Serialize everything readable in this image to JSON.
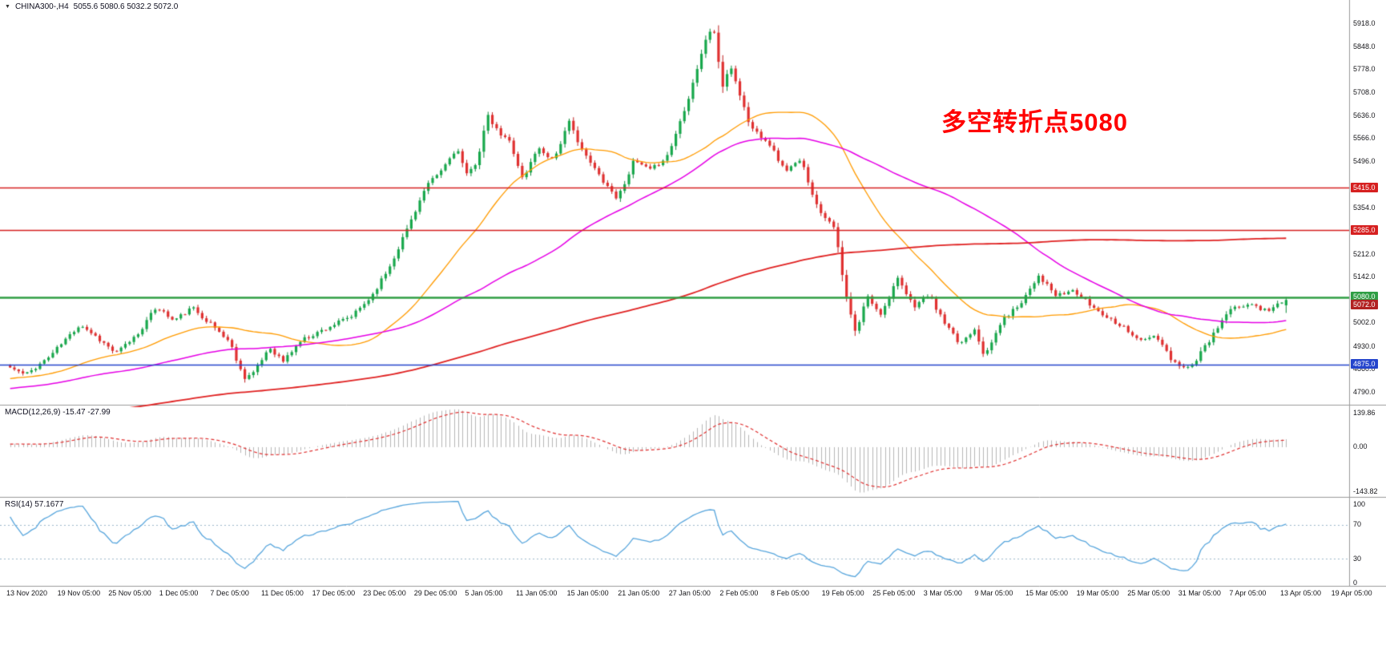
{
  "header": {
    "symbol": "CHINA300-,H4",
    "ohlc": "5055.6 5080.6 5032.2 5072.0"
  },
  "icons": {
    "collapse": "▼"
  },
  "annotation": {
    "text": "多空转折点5080",
    "color": "#ff0000"
  },
  "colors": {
    "background": "#ffffff",
    "panel_border": "#9a9a9a"
  },
  "x_axis": {
    "labels": [
      "13 Nov 2020",
      "19 Nov 05:00",
      "25 Nov 05:00",
      "1 Dec 05:00",
      "7 Dec 05:00",
      "11 Dec 05:00",
      "17 Dec 05:00",
      "23 Dec 05:00",
      "29 Dec 05:00",
      "5 Jan 05:00",
      "11 Jan 05:00",
      "15 Jan 05:00",
      "21 Jan 05:00",
      "27 Jan 05:00",
      "2 Feb 05:00",
      "8 Feb 05:00",
      "19 Feb 05:00",
      "25 Feb 05:00",
      "3 Mar 05:00",
      "9 Mar 05:00",
      "15 Mar 05:00",
      "19 Mar 05:00",
      "25 Mar 05:00",
      "31 Mar 05:00",
      "7 Apr 05:00",
      "13 Apr 05:00",
      "19 Apr 05:00"
    ]
  },
  "chart_data": [
    {
      "type": "candlestick",
      "title": "CHINA300-,H4",
      "timeframe": "H4",
      "last_bar": {
        "open": 5055.6,
        "high": 5080.6,
        "low": 5032.2,
        "close": 5072.0
      },
      "ylim": [
        4756,
        5966
      ],
      "y_ticks": [
        5918,
        5848,
        5778,
        5708,
        5636,
        5566,
        5496,
        5354,
        5212,
        5142,
        5002,
        4930,
        4860,
        4790
      ],
      "hlines": [
        {
          "value": 5415.0,
          "label": "5415.0",
          "color": "#d62020",
          "width": 1.3
        },
        {
          "value": 5285.0,
          "label": "5285.0",
          "color": "#d62020",
          "width": 1.3
        },
        {
          "value": 5080.0,
          "label": "5080.0",
          "color": "#2f9e44",
          "width": 2.6
        },
        {
          "value": 4875.0,
          "label": "4875.0",
          "color": "#2545cc",
          "width": 1.6
        }
      ],
      "current_price": {
        "value": 5072.0,
        "label": "5072.0",
        "color": "#b22222"
      },
      "colors": {
        "up": "#18a84c",
        "up_border": "#0e8c3c",
        "down": "#e03030",
        "down_border": "#bf1f1f"
      },
      "moving_averages": [
        {
          "period": 32,
          "color": "#ff9b00",
          "width": 1.3
        },
        {
          "period": 76,
          "color": "#e600e6",
          "width": 1.5
        },
        {
          "period": 220,
          "color": "#e02222",
          "width": 1.8
        }
      ],
      "bars": 300,
      "warmup_bars": 240,
      "warmup_anchors": [
        [
          0,
          4520
        ],
        [
          0.4,
          4640
        ],
        [
          0.75,
          4770
        ],
        [
          1,
          4850
        ]
      ],
      "close_anchors": [
        [
          0.0,
          4865
        ],
        [
          0.012,
          4842
        ],
        [
          0.03,
          4896
        ],
        [
          0.055,
          4998
        ],
        [
          0.068,
          4958
        ],
        [
          0.083,
          4908
        ],
        [
          0.1,
          4968
        ],
        [
          0.115,
          5052
        ],
        [
          0.128,
          5008
        ],
        [
          0.143,
          5048
        ],
        [
          0.158,
          4996
        ],
        [
          0.172,
          4944
        ],
        [
          0.183,
          4834
        ],
        [
          0.192,
          4852
        ],
        [
          0.203,
          4928
        ],
        [
          0.214,
          4884
        ],
        [
          0.228,
          4948
        ],
        [
          0.248,
          4986
        ],
        [
          0.268,
          5022
        ],
        [
          0.283,
          5082
        ],
        [
          0.298,
          5178
        ],
        [
          0.312,
          5298
        ],
        [
          0.326,
          5418
        ],
        [
          0.338,
          5468
        ],
        [
          0.35,
          5538
        ],
        [
          0.358,
          5452
        ],
        [
          0.366,
          5498
        ],
        [
          0.374,
          5636
        ],
        [
          0.383,
          5582
        ],
        [
          0.392,
          5556
        ],
        [
          0.402,
          5438
        ],
        [
          0.413,
          5538
        ],
        [
          0.426,
          5502
        ],
        [
          0.438,
          5616
        ],
        [
          0.451,
          5512
        ],
        [
          0.464,
          5442
        ],
        [
          0.476,
          5382
        ],
        [
          0.489,
          5498
        ],
        [
          0.502,
          5468
        ],
        [
          0.516,
          5518
        ],
        [
          0.532,
          5696
        ],
        [
          0.544,
          5856
        ],
        [
          0.551,
          5916
        ],
        [
          0.558,
          5722
        ],
        [
          0.565,
          5786
        ],
        [
          0.58,
          5602
        ],
        [
          0.594,
          5558
        ],
        [
          0.607,
          5468
        ],
        [
          0.62,
          5498
        ],
        [
          0.633,
          5352
        ],
        [
          0.646,
          5298
        ],
        [
          0.654,
          5102
        ],
        [
          0.663,
          4962
        ],
        [
          0.671,
          5086
        ],
        [
          0.683,
          5028
        ],
        [
          0.695,
          5138
        ],
        [
          0.708,
          5052
        ],
        [
          0.72,
          5088
        ],
        [
          0.732,
          5002
        ],
        [
          0.744,
          4936
        ],
        [
          0.756,
          4986
        ],
        [
          0.764,
          4896
        ],
        [
          0.777,
          5008
        ],
        [
          0.791,
          5058
        ],
        [
          0.806,
          5148
        ],
        [
          0.82,
          5082
        ],
        [
          0.833,
          5102
        ],
        [
          0.846,
          5058
        ],
        [
          0.859,
          5022
        ],
        [
          0.872,
          4992
        ],
        [
          0.886,
          4946
        ],
        [
          0.898,
          4962
        ],
        [
          0.911,
          4882
        ],
        [
          0.925,
          4864
        ],
        [
          0.94,
          4948
        ],
        [
          0.955,
          5038
        ],
        [
          0.97,
          5060
        ],
        [
          0.985,
          5040
        ],
        [
          1.0,
          5072
        ]
      ]
    },
    {
      "type": "macd-histogram",
      "label": "MACD(12,26,9) -15.47 -27.99",
      "params": [
        12,
        26,
        9
      ],
      "macd_value": -15.47,
      "signal_value": -27.99,
      "ticks": [
        "139.86",
        "0.00",
        "-143.82"
      ],
      "bar_color": "#b6b6b6",
      "signal_color": "#e03030"
    },
    {
      "type": "rsi-line",
      "label": "RSI(14) 57.1677",
      "period": 14,
      "value": 57.1677,
      "ticks": [
        {
          "label": "100",
          "value": 100
        },
        {
          "label": "70",
          "value": 70
        },
        {
          "label": "30",
          "value": 30
        },
        {
          "label": "0",
          "value": 0
        }
      ],
      "levels": [
        70,
        30
      ],
      "line_color": "#58a6dd"
    }
  ]
}
